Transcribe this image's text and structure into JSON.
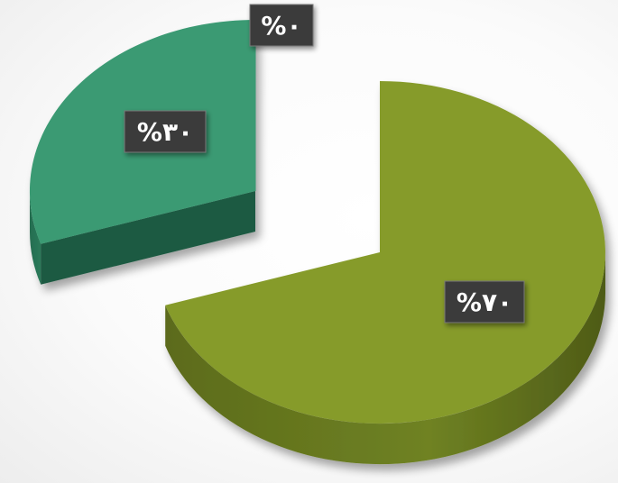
{
  "chart_data": {
    "type": "pie",
    "style": "3d-exploded",
    "title": "",
    "slices": [
      {
        "value": 70,
        "label": "%٧٠",
        "color": "#869b2c"
      },
      {
        "value": 30,
        "label": "%٣٠",
        "color": "#3a9a73"
      },
      {
        "value": 0,
        "label": "%٠",
        "color": "#3a9a73"
      }
    ],
    "legend": "none"
  }
}
